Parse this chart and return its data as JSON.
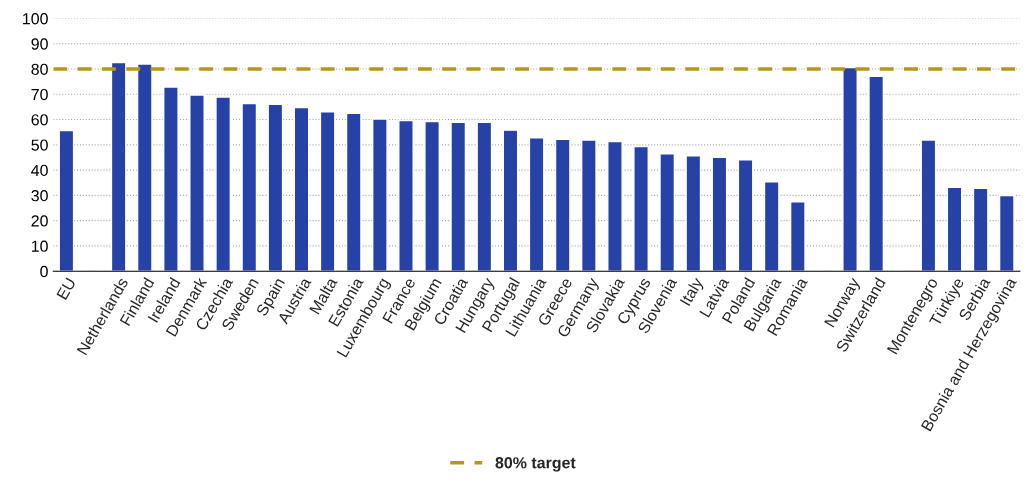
{
  "chart_data": {
    "type": "bar",
    "categories": [
      "EU",
      null,
      "Netherlands",
      "Finland",
      "Ireland",
      "Denmark",
      "Czechia",
      "Sweden",
      "Spain",
      "Austria",
      "Malta",
      "Estonia",
      "Luxembourg",
      "France",
      "Belgium",
      "Croatia",
      "Hungary",
      "Portugal",
      "Lithuania",
      "Greece",
      "Germany",
      "Slovakia",
      "Cyprus",
      "Slovenia",
      "Italy",
      "Latvia",
      "Poland",
      "Bulgaria",
      "Romania",
      null,
      "Norway",
      "Switzerland",
      null,
      "Montenegro",
      "Türkiye",
      "Serbia",
      "Bosnia and Herzegovina"
    ],
    "values": [
      55.6,
      null,
      82.6,
      82.0,
      72.9,
      69.7,
      68.9,
      66.3,
      66.0,
      64.7,
      63.1,
      62.5,
      60.2,
      59.6,
      59.2,
      58.9,
      58.9,
      55.8,
      52.8,
      52.2,
      51.9,
      51.3,
      49.3,
      46.4,
      45.7,
      45.1,
      44.1,
      35.4,
      27.5,
      null,
      80.6,
      77.1,
      null,
      51.9,
      33.2,
      32.8,
      29.9
    ],
    "color": "#2642a6",
    "ylim": [
      0,
      100
    ],
    "yticks": [
      0,
      10,
      20,
      30,
      40,
      50,
      60,
      70,
      80,
      90,
      100
    ],
    "grid": "y",
    "legend": "bottom",
    "ref_lines": [
      {
        "axis": "y",
        "value": 80,
        "label": "80% target",
        "color": "#b8961a",
        "line_style": "dashed"
      }
    ]
  }
}
